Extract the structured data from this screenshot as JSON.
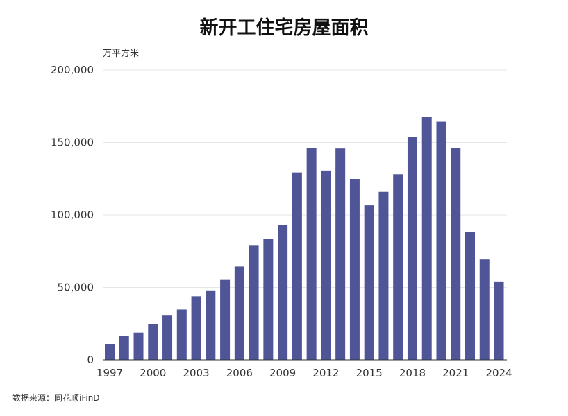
{
  "chart_data": {
    "type": "bar",
    "title": "新开工住宅房屋面积",
    "unit": "万平方米",
    "source": "数据来源：同花顺iFinD",
    "ylim": [
      0,
      200000
    ],
    "y_ticks": [
      "0",
      "50,000",
      "100,000",
      "150,000",
      "200,000"
    ],
    "y_tick_values": [
      0,
      50000,
      100000,
      150000,
      200000
    ],
    "x_tick_labels": [
      "1997",
      "2000",
      "2003",
      "2006",
      "2009",
      "2012",
      "2015",
      "2018",
      "2021",
      "2024"
    ],
    "grid": true,
    "categories": [
      "1997",
      "1998",
      "1999",
      "2000",
      "2001",
      "2002",
      "2003",
      "2004",
      "2005",
      "2006",
      "2007",
      "2008",
      "2009",
      "2010",
      "2011",
      "2012",
      "2013",
      "2014",
      "2015",
      "2016",
      "2017",
      "2018",
      "2019",
      "2020",
      "2021",
      "2022",
      "2023",
      "2024"
    ],
    "values": [
      10996,
      16638,
      18798,
      24401,
      30533,
      34719,
      43854,
      47949,
      55185,
      64403,
      78796,
      83642,
      93299,
      129359,
      146035,
      130695,
      145845,
      124877,
      106651,
      115911,
      128098,
      153753,
      167463,
      164329,
      146379,
      88135,
      69286,
      53660
    ],
    "bar_color": "#4f5597"
  }
}
